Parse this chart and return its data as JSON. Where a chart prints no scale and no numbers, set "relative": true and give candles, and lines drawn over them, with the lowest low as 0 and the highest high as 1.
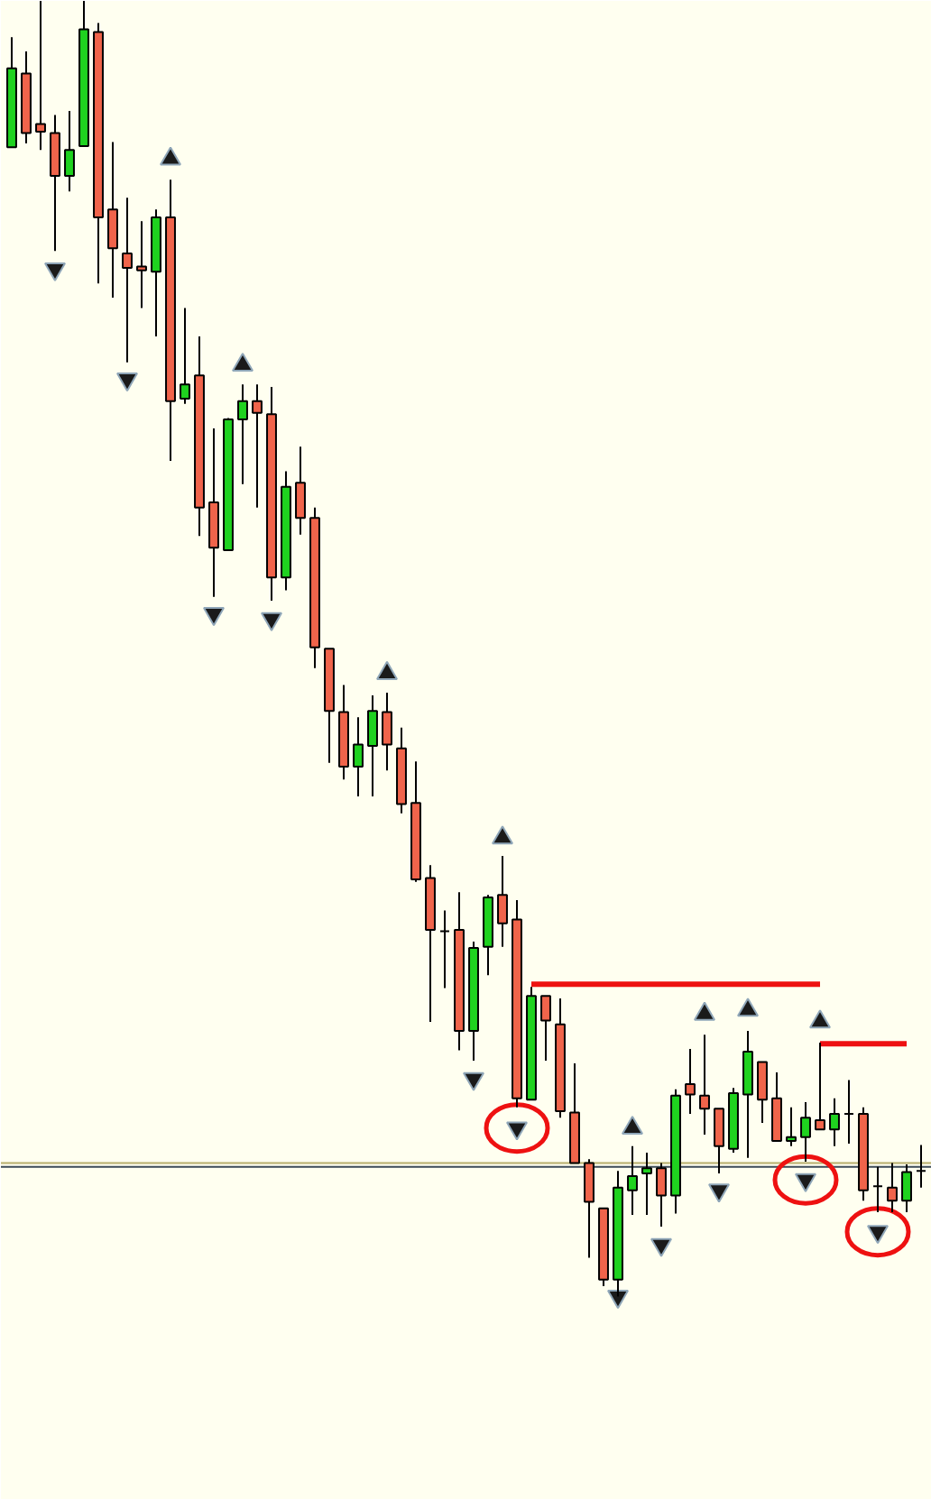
{
  "chart_data": {
    "type": "candlestick",
    "relative": true,
    "grid": false,
    "categories": [
      null,
      null,
      null,
      null,
      null,
      null,
      null,
      null,
      null,
      null,
      null,
      null,
      null,
      null,
      null,
      null,
      null,
      null,
      null,
      null,
      null,
      null,
      null,
      null,
      null,
      null,
      null,
      null,
      null,
      null,
      null,
      null,
      null,
      null,
      null,
      null,
      null,
      null,
      null,
      null,
      null,
      null,
      null,
      null,
      null,
      null,
      null,
      null,
      null,
      null,
      null,
      null,
      null,
      null,
      null,
      null,
      null,
      null,
      null,
      null,
      null,
      null,
      null,
      null
    ],
    "ohlc": [
      [
        0.887,
        0.972,
        0.887,
        0.948
      ],
      [
        0.944,
        0.961,
        0.89,
        0.898
      ],
      [
        0.905,
        1.0,
        0.885,
        0.899
      ],
      [
        0.898,
        0.912,
        0.807,
        0.865
      ],
      [
        0.865,
        0.915,
        0.853,
        0.885
      ],
      [
        0.888,
        1.0,
        0.888,
        0.978
      ],
      [
        0.976,
        0.983,
        0.782,
        0.833
      ],
      [
        0.839,
        0.891,
        0.771,
        0.809
      ],
      [
        0.805,
        0.848,
        0.721,
        0.794
      ],
      [
        0.795,
        0.83,
        0.763,
        0.792
      ],
      [
        0.791,
        0.839,
        0.741,
        0.833
      ],
      [
        0.833,
        0.862,
        0.645,
        0.691
      ],
      [
        0.693,
        0.763,
        0.689,
        0.704
      ],
      [
        0.711,
        0.741,
        0.587,
        0.609
      ],
      [
        0.613,
        0.67,
        0.54,
        0.578
      ],
      [
        0.576,
        0.678,
        0.576,
        0.677
      ],
      [
        0.677,
        0.704,
        0.627,
        0.691
      ],
      [
        0.691,
        0.704,
        0.609,
        0.682
      ],
      [
        0.681,
        0.702,
        0.537,
        0.555
      ],
      [
        0.555,
        0.637,
        0.545,
        0.625
      ],
      [
        0.628,
        0.656,
        0.588,
        0.601
      ],
      [
        0.601,
        0.609,
        0.485,
        0.501
      ],
      [
        0.5,
        0.5,
        0.412,
        0.452
      ],
      [
        0.451,
        0.472,
        0.399,
        0.409
      ],
      [
        0.409,
        0.447,
        0.386,
        0.426
      ],
      [
        0.425,
        0.464,
        0.386,
        0.452
      ],
      [
        0.451,
        0.466,
        0.406,
        0.426
      ],
      [
        0.423,
        0.439,
        0.373,
        0.38
      ],
      [
        0.381,
        0.413,
        0.32,
        0.322
      ],
      [
        0.323,
        0.333,
        0.212,
        0.283
      ],
      [
        0.282,
        0.298,
        0.238,
        0.282
      ],
      [
        0.283,
        0.312,
        0.19,
        0.205
      ],
      [
        0.205,
        0.274,
        0.182,
        0.269
      ],
      [
        0.27,
        0.31,
        0.248,
        0.308
      ],
      [
        0.31,
        0.34,
        0.27,
        0.288
      ],
      [
        0.291,
        0.306,
        0.146,
        0.153
      ],
      [
        0.152,
        0.239,
        0.152,
        0.232
      ],
      [
        0.232,
        0.232,
        0.182,
        0.213
      ],
      [
        0.21,
        0.23,
        0.138,
        0.143
      ],
      [
        0.142,
        0.18,
        0.103,
        0.103
      ],
      [
        0.103,
        0.106,
        0.03,
        0.073
      ],
      [
        0.068,
        0.068,
        0.008,
        0.013
      ],
      [
        0.013,
        0.097,
        0.0,
        0.084
      ],
      [
        0.082,
        0.116,
        0.063,
        0.093
      ],
      [
        0.095,
        0.111,
        0.063,
        0.099
      ],
      [
        0.099,
        0.103,
        0.054,
        0.078
      ],
      [
        0.078,
        0.16,
        0.064,
        0.155
      ],
      [
        0.164,
        0.191,
        0.141,
        0.156
      ],
      [
        0.155,
        0.202,
        0.125,
        0.145
      ],
      [
        0.145,
        0.145,
        0.095,
        0.116
      ],
      [
        0.114,
        0.161,
        0.111,
        0.157
      ],
      [
        0.156,
        0.205,
        0.107,
        0.189
      ],
      [
        0.181,
        0.181,
        0.134,
        0.152
      ],
      [
        0.153,
        0.173,
        0.12,
        0.12
      ],
      [
        0.12,
        0.146,
        0.116,
        0.123
      ],
      [
        0.123,
        0.15,
        0.104,
        0.138
      ],
      [
        0.136,
        0.196,
        0.129,
        0.129
      ],
      [
        0.129,
        0.153,
        0.116,
        0.141
      ],
      [
        0.141,
        0.167,
        0.118,
        0.141
      ],
      [
        0.141,
        0.146,
        0.074,
        0.082
      ],
      [
        0.085,
        0.1,
        0.065,
        0.085
      ],
      [
        0.084,
        0.103,
        0.065,
        0.074
      ],
      [
        0.074,
        0.102,
        0.065,
        0.096
      ],
      [
        0.097,
        0.117,
        0.084,
        0.097
      ]
    ],
    "colors": [
      "#1fd21f",
      "#f0644b",
      "#f0644b",
      "#f0644b",
      "#1fd21f",
      "#1fd21f",
      "#f0644b",
      "#f0644b",
      "#f0644b",
      "#f0644b",
      "#1fd21f",
      "#f0644b",
      "#1fd21f",
      "#f0644b",
      "#f0644b",
      "#1fd21f",
      "#1fd21f",
      "#f0644b",
      "#f0644b",
      "#1fd21f",
      "#f0644b",
      "#f0644b",
      "#f0644b",
      "#f0644b",
      "#1fd21f",
      "#1fd21f",
      "#f0644b",
      "#f0644b",
      "#f0644b",
      "#f0644b",
      "#000000",
      "#f0644b",
      "#1fd21f",
      "#1fd21f",
      "#f0644b",
      "#f0644b",
      "#1fd21f",
      "#f0644b",
      "#f0644b",
      "#f0644b",
      "#f0644b",
      "#f0644b",
      "#1fd21f",
      "#1fd21f",
      "#1fd21f",
      "#f0644b",
      "#1fd21f",
      "#f0644b",
      "#f0644b",
      "#f0644b",
      "#1fd21f",
      "#1fd21f",
      "#f0644b",
      "#f0644b",
      "#1fd21f",
      "#1fd21f",
      "#f0644b",
      "#1fd21f",
      "#000000",
      "#f0644b",
      "#000000",
      "#f0644b",
      "#1fd21f",
      "#000000"
    ],
    "ref_lines": [
      {
        "axis": "y",
        "value": 0.103,
        "color": "#b8ae6c"
      },
      {
        "axis": "y",
        "value": 0.1,
        "color": "#3c4a58"
      }
    ],
    "series": [
      {
        "type": "scatter",
        "marker": "triangle",
        "color": "#1a1a1a",
        "values": [
          null,
          null,
          null,
          null,
          null,
          null,
          null,
          null,
          null,
          null,
          null,
          0.878,
          null,
          null,
          null,
          null,
          0.719,
          null,
          null,
          null,
          null,
          null,
          null,
          null,
          null,
          null,
          0.481,
          null,
          null,
          null,
          null,
          null,
          null,
          null,
          0.354,
          null,
          null,
          null,
          null,
          null,
          null,
          null,
          null,
          0.13,
          null,
          null,
          null,
          null,
          0.218,
          null,
          null,
          0.221,
          null,
          null,
          null,
          null,
          0.212,
          null,
          null,
          null,
          null,
          null,
          null,
          null
        ]
      },
      {
        "type": "scatter",
        "marker": "triangle",
        "color": "#1a1a1a",
        "values": [
          null,
          null,
          null,
          0.793,
          null,
          null,
          null,
          null,
          0.708,
          null,
          null,
          null,
          null,
          null,
          0.527,
          null,
          null,
          null,
          0.523,
          null,
          null,
          null,
          null,
          null,
          null,
          null,
          null,
          null,
          null,
          null,
          null,
          null,
          0.168,
          null,
          null,
          0.13,
          null,
          null,
          null,
          null,
          null,
          null,
          0.0,
          null,
          null,
          0.04,
          null,
          null,
          null,
          0.082,
          null,
          null,
          null,
          null,
          null,
          0.09,
          null,
          null,
          null,
          null,
          0.05,
          null,
          null,
          null
        ]
      },
      {
        "type": "scatter",
        "marker": "circle",
        "color": "#ee1111",
        "values": [
          null,
          null,
          null,
          null,
          null,
          null,
          null,
          null,
          null,
          null,
          null,
          null,
          null,
          null,
          null,
          null,
          null,
          null,
          null,
          null,
          null,
          null,
          null,
          null,
          null,
          null,
          null,
          null,
          null,
          null,
          null,
          null,
          null,
          null,
          null,
          0.13,
          null,
          null,
          null,
          null,
          null,
          null,
          null,
          null,
          null,
          null,
          null,
          null,
          null,
          null,
          null,
          null,
          null,
          null,
          null,
          0.09,
          null,
          null,
          null,
          null,
          0.05,
          null,
          null,
          null
        ]
      },
      {
        "type": "line",
        "color": "#ee1111",
        "values": [
          null,
          null,
          null,
          null,
          null,
          null,
          null,
          null,
          null,
          null,
          null,
          null,
          null,
          null,
          null,
          null,
          null,
          null,
          null,
          null,
          null,
          null,
          null,
          null,
          null,
          null,
          null,
          null,
          null,
          null,
          null,
          null,
          null,
          null,
          null,
          null,
          0.241,
          0.241,
          0.241,
          0.241,
          0.241,
          0.241,
          0.241,
          0.241,
          0.241,
          0.241,
          0.241,
          0.241,
          0.241,
          0.241,
          0.241,
          0.241,
          0.241,
          0.241,
          0.241,
          0.241,
          0.241,
          null,
          null,
          null,
          null,
          null,
          null,
          null
        ]
      },
      {
        "type": "line",
        "color": "#ee1111",
        "values": [
          null,
          null,
          null,
          null,
          null,
          null,
          null,
          null,
          null,
          null,
          null,
          null,
          null,
          null,
          null,
          null,
          null,
          null,
          null,
          null,
          null,
          null,
          null,
          null,
          null,
          null,
          null,
          null,
          null,
          null,
          null,
          null,
          null,
          null,
          null,
          null,
          null,
          null,
          null,
          null,
          null,
          null,
          null,
          null,
          null,
          null,
          null,
          null,
          null,
          null,
          null,
          null,
          null,
          null,
          null,
          null,
          0.195,
          0.195,
          0.195,
          0.195,
          0.195,
          0.195,
          0.195,
          null
        ]
      }
    ]
  }
}
